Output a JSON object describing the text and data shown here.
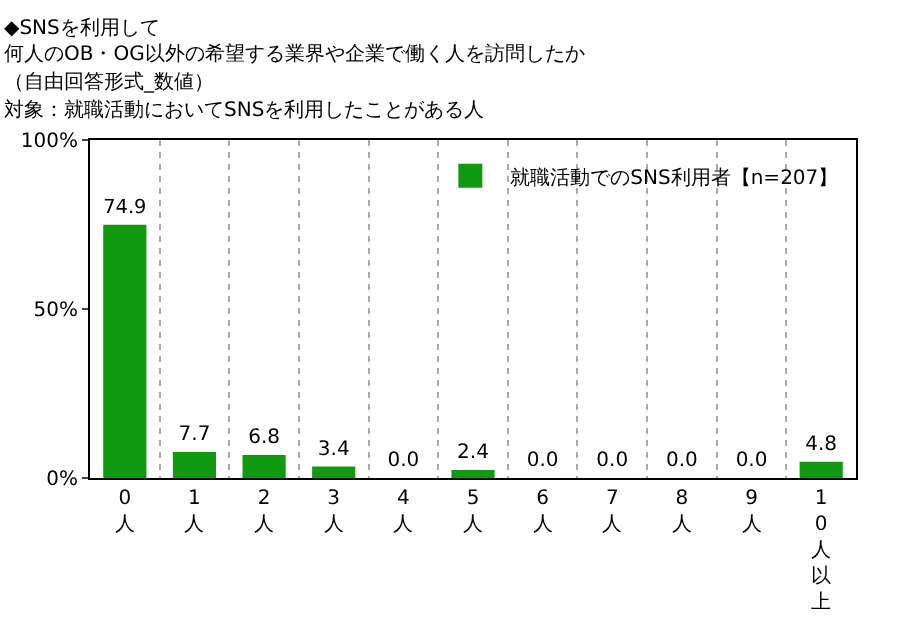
{
  "chart_data": {
    "type": "bar",
    "title": "◆SNSを利用して",
    "subtitle": "何人のOB・OG以外の希望する業界や企業で働く人を訪問したか",
    "annotations": [
      "（自由回答形式_数値）",
      "対象：就職活動においてSNSを利用したことがある人"
    ],
    "categories": [
      "0人",
      "1人",
      "2人",
      "3人",
      "4人",
      "5人",
      "6人",
      "7人",
      "8人",
      "9人",
      "10人以上"
    ],
    "series": [
      {
        "name": "就職活動でのSNS利用者【n=207】",
        "color": "#119911",
        "values": [
          74.9,
          7.7,
          6.8,
          3.4,
          0.0,
          2.4,
          0.0,
          0.0,
          0.0,
          0.0,
          4.8
        ],
        "value_labels": [
          "74.9",
          "7.7",
          "6.8",
          "3.4",
          "0.0",
          "2.4",
          "0.0",
          "0.0",
          "0.0",
          "0.0",
          "4.8"
        ]
      }
    ],
    "ylim": [
      0,
      100
    ],
    "yticks": [
      {
        "value": 0,
        "label": "0%"
      },
      {
        "value": 50,
        "label": "50%"
      },
      {
        "value": 100,
        "label": "100%"
      }
    ],
    "grid": "x",
    "legend": "top right"
  }
}
